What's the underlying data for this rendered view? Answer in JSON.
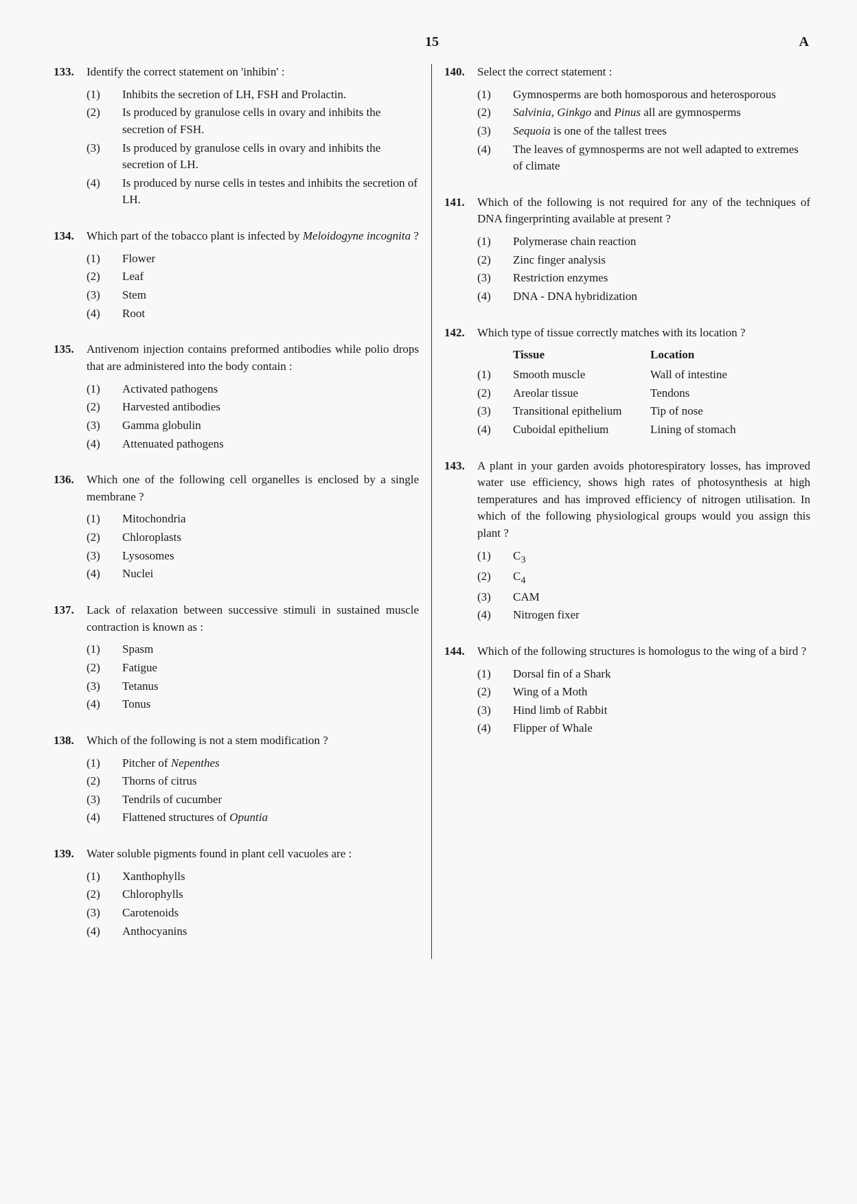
{
  "page": {
    "number": "15",
    "letter": "A"
  },
  "questions": [
    {
      "num": "133.",
      "stem": "Identify the correct statement on 'inhibin' :",
      "options": [
        {
          "n": "(1)",
          "t": "Inhibits the secretion of LH, FSH and Prolactin."
        },
        {
          "n": "(2)",
          "t": "Is produced by granulose cells in ovary and inhibits the secretion of FSH."
        },
        {
          "n": "(3)",
          "t": "Is produced by granulose cells in ovary and inhibits the secretion of LH."
        },
        {
          "n": "(4)",
          "t": "Is produced by nurse cells in testes and inhibits the secretion of LH."
        }
      ]
    },
    {
      "num": "134.",
      "stem_html": "Which part of the tobacco plant is infected by <i>Meloidogyne incognita</i> ?",
      "options": [
        {
          "n": "(1)",
          "t": "Flower"
        },
        {
          "n": "(2)",
          "t": "Leaf"
        },
        {
          "n": "(3)",
          "t": "Stem"
        },
        {
          "n": "(4)",
          "t": "Root"
        }
      ]
    },
    {
      "num": "135.",
      "stem": "Antivenom injection contains preformed antibodies while polio drops that are administered into the body contain :",
      "options": [
        {
          "n": "(1)",
          "t": "Activated pathogens"
        },
        {
          "n": "(2)",
          "t": "Harvested antibodies"
        },
        {
          "n": "(3)",
          "t": "Gamma globulin"
        },
        {
          "n": "(4)",
          "t": "Attenuated pathogens"
        }
      ]
    },
    {
      "num": "136.",
      "stem": "Which one of the following cell organelles is enclosed by a single membrane ?",
      "options": [
        {
          "n": "(1)",
          "t": "Mitochondria"
        },
        {
          "n": "(2)",
          "t": "Chloroplasts"
        },
        {
          "n": "(3)",
          "t": "Lysosomes"
        },
        {
          "n": "(4)",
          "t": "Nuclei"
        }
      ]
    },
    {
      "num": "137.",
      "stem": "Lack of relaxation between successive stimuli in sustained muscle contraction is known as :",
      "options": [
        {
          "n": "(1)",
          "t": "Spasm"
        },
        {
          "n": "(2)",
          "t": "Fatigue"
        },
        {
          "n": "(3)",
          "t": "Tetanus"
        },
        {
          "n": "(4)",
          "t": "Tonus"
        }
      ]
    },
    {
      "num": "138.",
      "stem": "Which of the following is not a stem modification ?",
      "options": [
        {
          "n": "(1)",
          "t_html": "Pitcher of <i>Nepenthes</i>"
        },
        {
          "n": "(2)",
          "t": "Thorns of citrus"
        },
        {
          "n": "(3)",
          "t": "Tendrils of cucumber"
        },
        {
          "n": "(4)",
          "t_html": "Flattened structures of <i>Opuntia</i>"
        }
      ]
    },
    {
      "num": "139.",
      "stem": "Water soluble pigments found in plant cell vacuoles are :",
      "options": [
        {
          "n": "(1)",
          "t": "Xanthophylls"
        },
        {
          "n": "(2)",
          "t": "Chlorophylls"
        },
        {
          "n": "(3)",
          "t": "Carotenoids"
        },
        {
          "n": "(4)",
          "t": "Anthocyanins"
        }
      ]
    },
    {
      "num": "140.",
      "stem": "Select the correct statement :",
      "options": [
        {
          "n": "(1)",
          "t": "Gymnosperms are both homosporous and heterosporous"
        },
        {
          "n": "(2)",
          "t_html": "<i>Salvinia, Ginkgo</i> and <i>Pinus</i> all are gymnosperms"
        },
        {
          "n": "(3)",
          "t_html": "<i>Sequoia</i> is one of the tallest trees"
        },
        {
          "n": "(4)",
          "t": "The leaves of gymnosperms are not well adapted to extremes of climate"
        }
      ]
    },
    {
      "num": "141.",
      "stem": "Which of the following is not required for any of the techniques of DNA fingerprinting available at present ?",
      "options": [
        {
          "n": "(1)",
          "t": "Polymerase chain reaction"
        },
        {
          "n": "(2)",
          "t": "Zinc finger analysis"
        },
        {
          "n": "(3)",
          "t": "Restriction enzymes"
        },
        {
          "n": "(4)",
          "t": "DNA - DNA hybridization"
        }
      ]
    },
    {
      "num": "142.",
      "stem": "Which type of tissue correctly matches with its location ?",
      "headers": {
        "c1": "Tissue",
        "c2": "Location"
      },
      "options": [
        {
          "n": "(1)",
          "c1": "Smooth muscle",
          "c2": "Wall of intestine"
        },
        {
          "n": "(2)",
          "c1": "Areolar tissue",
          "c2": "Tendons"
        },
        {
          "n": "(3)",
          "c1": "Transitional epithelium",
          "c2": "Tip of nose"
        },
        {
          "n": "(4)",
          "c1": "Cuboidal epithelium",
          "c2": "Lining of stomach"
        }
      ]
    },
    {
      "num": "143.",
      "stem": "A plant in your garden avoids photorespiratory losses, has improved water use efficiency, shows high rates of photosynthesis at high temperatures and has improved efficiency of nitrogen utilisation. In which of the following physiological groups would you assign this plant ?",
      "options": [
        {
          "n": "(1)",
          "t_html": "C<sub>3</sub>"
        },
        {
          "n": "(2)",
          "t_html": "C<sub>4</sub>"
        },
        {
          "n": "(3)",
          "t": "CAM"
        },
        {
          "n": "(4)",
          "t": "Nitrogen fixer"
        }
      ]
    },
    {
      "num": "144.",
      "stem": "Which of the following structures is homologus to the wing of a bird ?",
      "options": [
        {
          "n": "(1)",
          "t": "Dorsal fin of a Shark"
        },
        {
          "n": "(2)",
          "t": "Wing of a Moth"
        },
        {
          "n": "(3)",
          "t": "Hind limb of Rabbit"
        },
        {
          "n": "(4)",
          "t": "Flipper of Whale"
        }
      ]
    }
  ],
  "left_col": [
    0,
    1,
    2,
    3,
    4,
    5,
    6
  ],
  "right_col": [
    7,
    8,
    9,
    10,
    11
  ],
  "colors": {
    "bg": "#f8f8f6",
    "text": "#1a1a1a",
    "divider": "#333333"
  }
}
